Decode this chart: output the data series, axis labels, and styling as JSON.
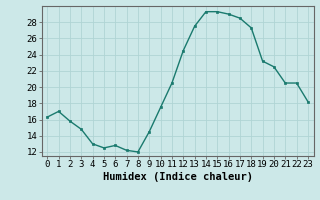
{
  "x": [
    0,
    1,
    2,
    3,
    4,
    5,
    6,
    7,
    8,
    9,
    10,
    11,
    12,
    13,
    14,
    15,
    16,
    17,
    18,
    19,
    20,
    21,
    22,
    23
  ],
  "y": [
    16.3,
    17.0,
    15.8,
    14.8,
    13.0,
    12.5,
    12.8,
    12.2,
    12.0,
    14.5,
    17.5,
    20.5,
    24.5,
    27.5,
    29.3,
    29.3,
    29.0,
    28.5,
    27.3,
    23.2,
    22.5,
    20.5,
    20.5,
    18.2
  ],
  "line_color": "#1a7a6e",
  "marker": "s",
  "marker_size": 2.0,
  "bg_color": "#cce8e8",
  "grid_color": "#b0d4d4",
  "xlabel": "Humidex (Indice chaleur)",
  "xlim": [
    -0.5,
    23.5
  ],
  "ylim": [
    11.5,
    30.0
  ],
  "yticks": [
    12,
    14,
    16,
    18,
    20,
    22,
    24,
    26,
    28
  ],
  "xticks": [
    0,
    1,
    2,
    3,
    4,
    5,
    6,
    7,
    8,
    9,
    10,
    11,
    12,
    13,
    14,
    15,
    16,
    17,
    18,
    19,
    20,
    21,
    22,
    23
  ],
  "xtick_labels": [
    "0",
    "1",
    "2",
    "3",
    "4",
    "5",
    "6",
    "7",
    "8",
    "9",
    "10",
    "11",
    "12",
    "13",
    "14",
    "15",
    "16",
    "17",
    "18",
    "19",
    "20",
    "21",
    "22",
    "23"
  ],
  "xlabel_fontsize": 7.5,
  "tick_fontsize": 6.5,
  "line_width": 1.0,
  "spine_color": "#666666"
}
